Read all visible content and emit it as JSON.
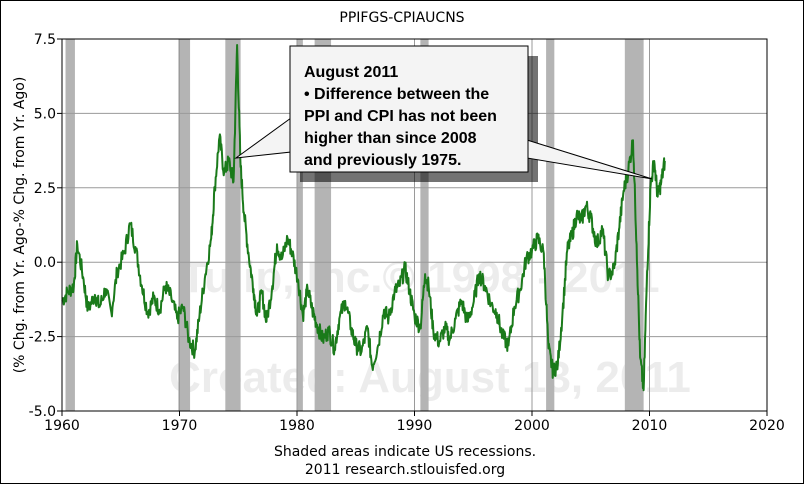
{
  "chart_data": {
    "type": "line",
    "title": "PPIFGS-CPIAUCNS",
    "ylabel": "(% Chg. from Yr. Ago-% Chg. from Yr. Ago)",
    "xlim": [
      1960,
      2020
    ],
    "ylim": [
      -5.0,
      7.5
    ],
    "x_ticks": [
      "1960",
      "1970",
      "1980",
      "1990",
      "2000",
      "2010",
      "2020"
    ],
    "y_ticks": [
      "-5.0",
      "-2.5",
      "0.0",
      "2.5",
      "5.0",
      "7.5"
    ],
    "grid": true,
    "line_color": "#1a7a1a",
    "recession_color": "#b4b4b4",
    "recessions": [
      [
        1960.3,
        1961.1
      ],
      [
        1969.9,
        1970.9
      ],
      [
        1973.9,
        1975.2
      ],
      [
        1980.0,
        1980.5
      ],
      [
        1981.5,
        1982.9
      ],
      [
        1990.5,
        1991.2
      ],
      [
        2001.2,
        2001.9
      ],
      [
        2007.9,
        2009.5
      ]
    ],
    "series": [
      {
        "values": [
          [
            1960.0,
            -1.3
          ],
          [
            1960.5,
            -1.0
          ],
          [
            1961.0,
            -0.8
          ],
          [
            1961.3,
            0.6
          ],
          [
            1961.8,
            -0.5
          ],
          [
            1962.2,
            -1.6
          ],
          [
            1962.8,
            -1.1
          ],
          [
            1963.2,
            -1.5
          ],
          [
            1963.7,
            -0.9
          ],
          [
            1964.2,
            -1.7
          ],
          [
            1964.7,
            -0.3
          ],
          [
            1965.3,
            0.3
          ],
          [
            1965.8,
            1.3
          ],
          [
            1966.3,
            0.4
          ],
          [
            1966.8,
            -0.8
          ],
          [
            1967.3,
            -1.7
          ],
          [
            1967.8,
            -1.2
          ],
          [
            1968.3,
            -1.6
          ],
          [
            1968.8,
            -0.8
          ],
          [
            1969.3,
            -1.2
          ],
          [
            1969.8,
            -1.9
          ],
          [
            1970.3,
            -1.5
          ],
          [
            1970.8,
            -2.6
          ],
          [
            1971.3,
            -3.0
          ],
          [
            1971.7,
            -1.8
          ],
          [
            1972.2,
            -0.4
          ],
          [
            1972.7,
            0.8
          ],
          [
            1973.0,
            2.5
          ],
          [
            1973.4,
            4.2
          ],
          [
            1973.8,
            3.0
          ],
          [
            1974.2,
            3.4
          ],
          [
            1974.6,
            2.7
          ],
          [
            1974.9,
            7.3
          ],
          [
            1975.2,
            3.2
          ],
          [
            1975.5,
            1.6
          ],
          [
            1975.9,
            0.2
          ],
          [
            1976.3,
            -0.9
          ],
          [
            1976.6,
            -1.8
          ],
          [
            1977.0,
            -1.0
          ],
          [
            1977.4,
            -2.0
          ],
          [
            1977.9,
            -0.8
          ],
          [
            1978.3,
            0.6
          ],
          [
            1978.7,
            0.1
          ],
          [
            1979.2,
            0.8
          ],
          [
            1979.6,
            0.3
          ],
          [
            1980.1,
            -0.6
          ],
          [
            1980.5,
            -1.8
          ],
          [
            1980.9,
            -0.9
          ],
          [
            1981.3,
            -1.6
          ],
          [
            1981.7,
            -2.1
          ],
          [
            1982.2,
            -2.6
          ],
          [
            1982.7,
            -2.3
          ],
          [
            1983.2,
            -2.9
          ],
          [
            1983.6,
            -1.9
          ],
          [
            1984.1,
            -1.3
          ],
          [
            1984.6,
            -2.2
          ],
          [
            1985.0,
            -2.8
          ],
          [
            1985.5,
            -3.0
          ],
          [
            1986.0,
            -2.2
          ],
          [
            1986.4,
            -3.5
          ],
          [
            1986.9,
            -2.8
          ],
          [
            1987.4,
            -1.6
          ],
          [
            1987.8,
            -1.9
          ],
          [
            1988.3,
            -1.0
          ],
          [
            1988.7,
            -0.8
          ],
          [
            1989.2,
            -0.2
          ],
          [
            1989.6,
            -1.0
          ],
          [
            1990.0,
            -1.8
          ],
          [
            1990.5,
            -2.2
          ],
          [
            1990.9,
            -0.4
          ],
          [
            1991.2,
            -0.8
          ],
          [
            1991.6,
            -2.3
          ],
          [
            1992.1,
            -2.7
          ],
          [
            1992.6,
            -2.2
          ],
          [
            1993.0,
            -2.6
          ],
          [
            1993.5,
            -1.9
          ],
          [
            1994.0,
            -1.3
          ],
          [
            1994.5,
            -2.0
          ],
          [
            1995.0,
            -1.4
          ],
          [
            1995.5,
            -0.4
          ],
          [
            1996.0,
            -0.8
          ],
          [
            1996.5,
            -1.4
          ],
          [
            1997.0,
            -1.7
          ],
          [
            1997.5,
            -2.5
          ],
          [
            1998.0,
            -2.8
          ],
          [
            1998.5,
            -1.5
          ],
          [
            1999.0,
            -0.9
          ],
          [
            1999.5,
            0.1
          ],
          [
            2000.0,
            0.4
          ],
          [
            2000.5,
            0.8
          ],
          [
            2001.0,
            0.3
          ],
          [
            2001.4,
            -2.9
          ],
          [
            2001.8,
            -3.7
          ],
          [
            2002.2,
            -3.4
          ],
          [
            2002.6,
            -1.7
          ],
          [
            2003.0,
            0.4
          ],
          [
            2003.4,
            0.9
          ],
          [
            2003.8,
            1.6
          ],
          [
            2004.2,
            1.4
          ],
          [
            2004.6,
            1.9
          ],
          [
            2005.0,
            1.5
          ],
          [
            2005.5,
            0.6
          ],
          [
            2006.0,
            1.1
          ],
          [
            2006.5,
            -0.5
          ],
          [
            2007.0,
            -0.2
          ],
          [
            2007.4,
            1.1
          ],
          [
            2007.8,
            2.4
          ],
          [
            2008.2,
            3.1
          ],
          [
            2008.6,
            4.1
          ],
          [
            2008.9,
            0.6
          ],
          [
            2009.2,
            -3.2
          ],
          [
            2009.5,
            -4.3
          ],
          [
            2009.8,
            -0.3
          ],
          [
            2010.1,
            2.6
          ],
          [
            2010.4,
            3.4
          ],
          [
            2010.7,
            2.2
          ],
          [
            2011.0,
            2.7
          ],
          [
            2011.3,
            3.4
          ]
        ]
      }
    ],
    "annotations": [
      {
        "lines": [
          "August 2011",
          "• Difference between the",
          "PPI and CPI has not been",
          "higher than since 2008",
          "and previously 1975."
        ],
        "targets": [
          [
            1974.8,
            3.5
          ],
          [
            2010.2,
            2.8
          ]
        ]
      }
    ],
    "footer": [
      "Shaded areas indicate US recessions.",
      "2011 research.stlouisfed.org"
    ],
    "watermark": [
      "Tulip, Inc.© 1998 - 2011",
      "Created: August 13, 2011"
    ]
  }
}
